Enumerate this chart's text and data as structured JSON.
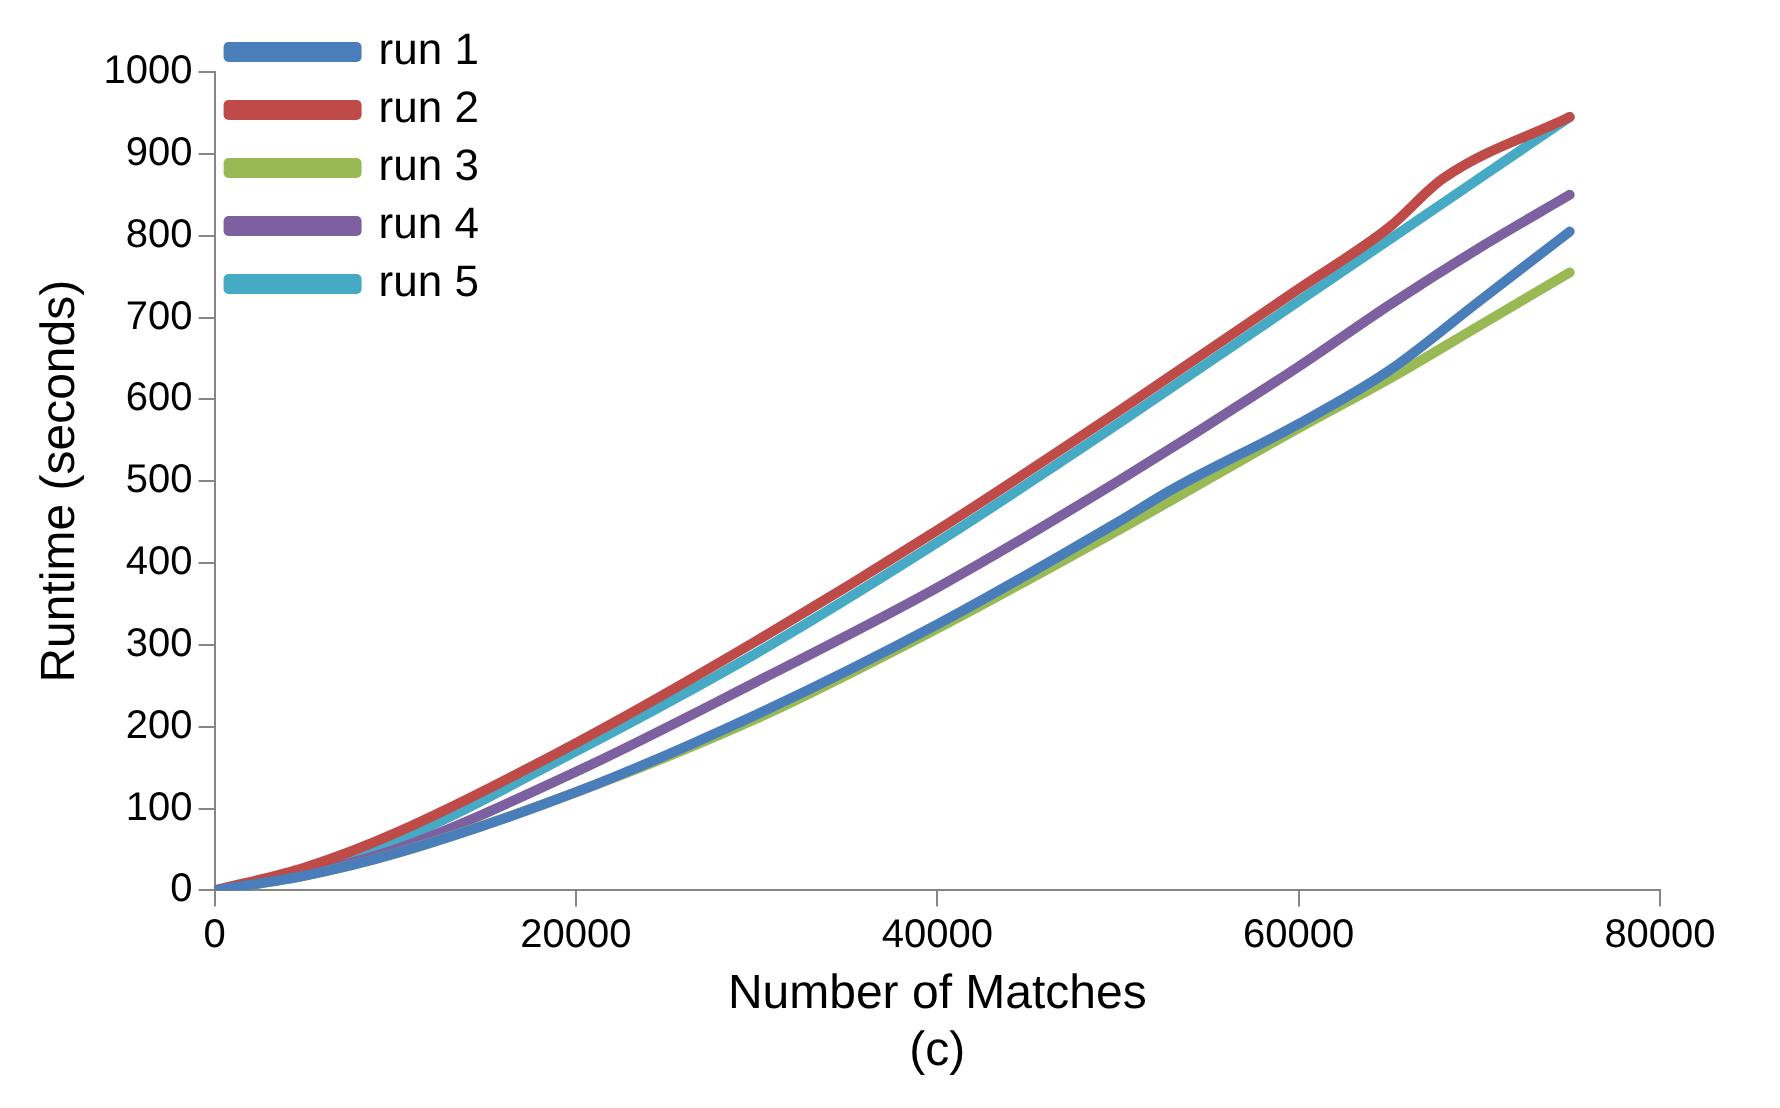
{
  "chart_data": {
    "type": "line",
    "xlabel": "Number of Matches",
    "ylabel": "Runtime (seconds)",
    "annotations": [
      "(c)"
    ],
    "xlim": [
      0,
      80000
    ],
    "xticks": [
      0,
      20000,
      40000,
      60000,
      80000
    ],
    "ylim": [
      0,
      1000
    ],
    "yticks": [
      0,
      100,
      200,
      300,
      400,
      500,
      600,
      700,
      800,
      900,
      1000
    ],
    "grid": false,
    "legend": "top left",
    "marker": "none",
    "line_style": "solid",
    "series": [
      {
        "name": "run 1",
        "color": "#4a7ebb",
        "x": [
          0,
          5000,
          10000,
          20000,
          30000,
          40000,
          50000,
          53000,
          60000,
          65000,
          70000,
          75000
        ],
        "values": [
          0,
          18,
          45,
          120,
          215,
          325,
          450,
          490,
          570,
          635,
          720,
          805
        ]
      },
      {
        "name": "run 2",
        "color": "#be4b48",
        "x": [
          0,
          5000,
          10000,
          20000,
          30000,
          40000,
          50000,
          60000,
          65000,
          68000,
          75000
        ],
        "values": [
          0,
          28,
          70,
          180,
          305,
          440,
          585,
          735,
          810,
          870,
          945
        ]
      },
      {
        "name": "run 3",
        "color": "#98b954",
        "x": [
          0,
          5000,
          10000,
          20000,
          30000,
          40000,
          50000,
          60000,
          65000,
          70000,
          75000
        ],
        "values": [
          0,
          18,
          45,
          120,
          210,
          320,
          440,
          565,
          625,
          690,
          755
        ]
      },
      {
        "name": "run 4",
        "color": "#7d60a0",
        "x": [
          0,
          5000,
          10000,
          20000,
          30000,
          40000,
          50000,
          60000,
          65000,
          70000,
          75000
        ],
        "values": [
          0,
          20,
          50,
          145,
          255,
          370,
          500,
          640,
          715,
          785,
          850
        ]
      },
      {
        "name": "run 5",
        "color": "#46aac5",
        "x": [
          0,
          5000,
          10000,
          20000,
          30000,
          40000,
          50000,
          60000,
          65000,
          70000,
          75000
        ],
        "values": [
          0,
          25,
          60,
          170,
          290,
          425,
          570,
          720,
          795,
          870,
          945
        ]
      }
    ]
  }
}
